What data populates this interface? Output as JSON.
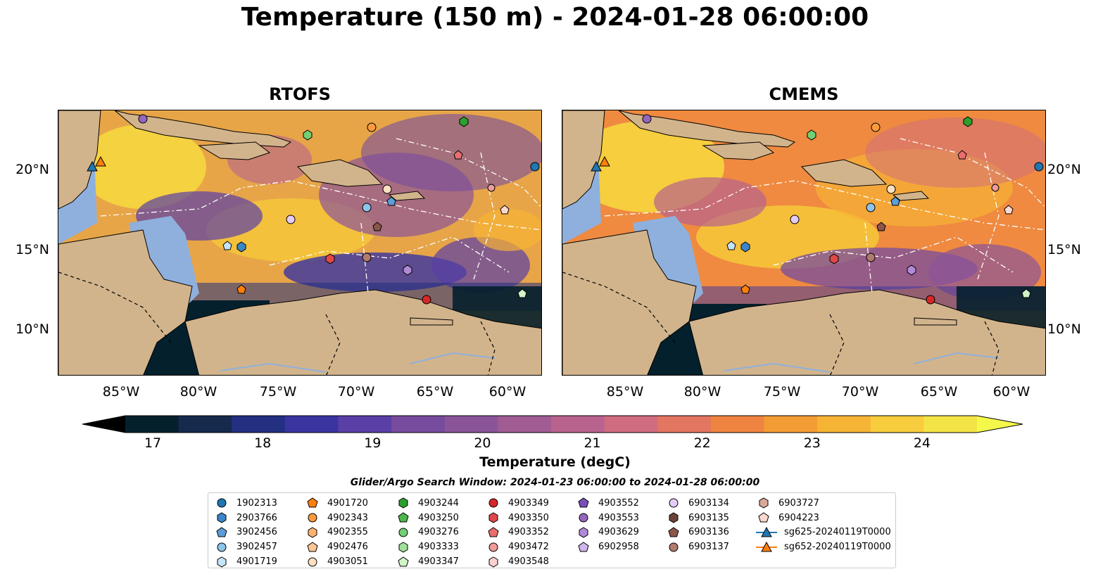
{
  "suptitle": "Temperature (150 m) - 2024-01-28 06:00:00",
  "panels": [
    "RTOFS",
    "CMEMS"
  ],
  "lat_ticks": [
    "20°N",
    "15°N",
    "10°N"
  ],
  "lon_ticks": [
    "85°W",
    "80°W",
    "75°W",
    "70°W",
    "65°W",
    "60°W"
  ],
  "colorbar": {
    "ticks": [
      "17",
      "18",
      "19",
      "20",
      "21",
      "22",
      "23",
      "24"
    ],
    "label": "Temperature (degC)",
    "range": [
      16.75,
      24.5
    ],
    "colors": [
      "#04202c",
      "#152a4d",
      "#232f80",
      "#3a34a0",
      "#5a3fa6",
      "#774c9f",
      "#8b5499",
      "#a05c93",
      "#b8638d",
      "#d06c80",
      "#e27660",
      "#ef8440",
      "#f49c34",
      "#f6b435",
      "#f8cd3d",
      "#f4e347"
    ]
  },
  "search_window": "Glider/Argo Search Window: 2024-01-23 06:00:00 to 2024-01-28 06:00:00",
  "legend": [
    [
      {
        "label": "1902313",
        "shape": "circle",
        "color": "#1f77b4"
      },
      {
        "label": "2903766",
        "shape": "hexagon",
        "color": "#3a86c8"
      },
      {
        "label": "3902456",
        "shape": "pentagon",
        "color": "#5b9ed8"
      },
      {
        "label": "3902457",
        "shape": "circle",
        "color": "#8cc4ea"
      },
      {
        "label": "4901719",
        "shape": "hexagon",
        "color": "#c6e4f7"
      }
    ],
    [
      {
        "label": "4901720",
        "shape": "pentagon",
        "color": "#ff7f0e"
      },
      {
        "label": "4902343",
        "shape": "circle",
        "color": "#fd9a3c"
      },
      {
        "label": "4902355",
        "shape": "hexagon",
        "color": "#fdb26e"
      },
      {
        "label": "4902476",
        "shape": "pentagon",
        "color": "#fdc794"
      },
      {
        "label": "4903051",
        "shape": "circle",
        "color": "#fde0c0"
      }
    ],
    [
      {
        "label": "4903244",
        "shape": "hexagon",
        "color": "#2ca02c"
      },
      {
        "label": "4903250",
        "shape": "pentagon",
        "color": "#4cb84c"
      },
      {
        "label": "4903276",
        "shape": "circle",
        "color": "#74cf74"
      },
      {
        "label": "4903333",
        "shape": "hexagon",
        "color": "#a0e09a"
      },
      {
        "label": "4903347",
        "shape": "pentagon",
        "color": "#d2f5c8"
      }
    ],
    [
      {
        "label": "4903349",
        "shape": "circle",
        "color": "#d62728"
      },
      {
        "label": "4903350",
        "shape": "hexagon",
        "color": "#e04848"
      },
      {
        "label": "4903352",
        "shape": "pentagon",
        "color": "#ea6e6e"
      },
      {
        "label": "4903472",
        "shape": "circle",
        "color": "#f19a9a"
      },
      {
        "label": "4903548",
        "shape": "hexagon",
        "color": "#fad0d0"
      }
    ],
    [
      {
        "label": "4903552",
        "shape": "pentagon",
        "color": "#7b4fb8"
      },
      {
        "label": "4903553",
        "shape": "circle",
        "color": "#9467bd"
      },
      {
        "label": "4903629",
        "shape": "hexagon",
        "color": "#b08ad6"
      },
      {
        "label": "6902958",
        "shape": "pentagon",
        "color": "#d0b6ee"
      }
    ],
    [
      {
        "label": "6903134",
        "shape": "circle",
        "color": "#e5ccf7"
      },
      {
        "label": "6903135",
        "shape": "hexagon",
        "color": "#6b4238"
      },
      {
        "label": "6903136",
        "shape": "pentagon",
        "color": "#8c564b"
      },
      {
        "label": "6903137",
        "shape": "circle",
        "color": "#b07a6e"
      }
    ],
    [
      {
        "label": "6903727",
        "shape": "hexagon",
        "color": "#d8a898"
      },
      {
        "label": "6904223",
        "shape": "pentagon",
        "color": "#f9d8cf"
      },
      {
        "label": "sg625-20240119T0000",
        "shape": "triangle-line",
        "color": "#1f77b4"
      },
      {
        "label": "sg652-20240119T0000",
        "shape": "triangle-line",
        "color": "#ff7f0e"
      }
    ]
  ]
}
